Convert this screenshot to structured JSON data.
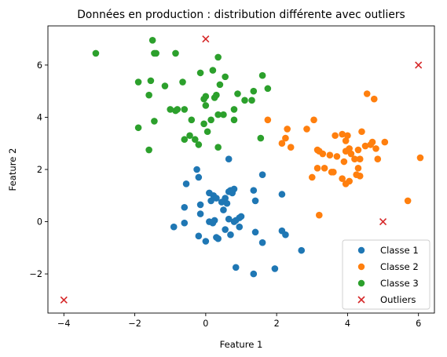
{
  "chart_data": {
    "type": "scatter",
    "title": "Données en production : distribution différente avec outliers",
    "xlabel": "Feature 1",
    "ylabel": "Feature 2",
    "xlim": [
      -4.45,
      6.45
    ],
    "ylim": [
      -3.5,
      7.5
    ],
    "xticks": [
      -4,
      -2,
      0,
      2,
      4,
      6
    ],
    "yticks": [
      -2,
      0,
      2,
      4,
      6
    ],
    "grid": false,
    "legend_position": "bottom-right",
    "series": [
      {
        "name": "Classe 1",
        "marker": "circle",
        "color": "#1f77b4",
        "points": [
          [
            -0.25,
            2.0
          ],
          [
            0.1,
            1.1
          ],
          [
            0.22,
            1.0
          ],
          [
            0.55,
            0.9
          ],
          [
            0.65,
            1.15
          ],
          [
            0.7,
            1.2
          ],
          [
            0.75,
            1.1
          ],
          [
            0.8,
            1.25
          ],
          [
            0.15,
            0.8
          ],
          [
            0.3,
            0.9
          ],
          [
            0.45,
            0.75
          ],
          [
            0.6,
            0.7
          ],
          [
            -0.55,
            1.45
          ],
          [
            -0.2,
            1.7
          ],
          [
            0.65,
            2.4
          ],
          [
            1.35,
            1.2
          ],
          [
            1.6,
            1.8
          ],
          [
            1.4,
            0.8
          ],
          [
            2.15,
            1.05
          ],
          [
            -0.15,
            0.65
          ],
          [
            -0.15,
            0.3
          ],
          [
            -0.6,
            0.55
          ],
          [
            0.1,
            0.0
          ],
          [
            0.25,
            0.05
          ],
          [
            0.5,
            0.45
          ],
          [
            0.65,
            0.1
          ],
          [
            0.95,
            0.15
          ],
          [
            0.8,
            0.0
          ],
          [
            0.85,
            0.05
          ],
          [
            -0.9,
            -0.2
          ],
          [
            -0.6,
            -0.05
          ],
          [
            -0.2,
            -0.55
          ],
          [
            0.0,
            -0.75
          ],
          [
            0.3,
            -0.6
          ],
          [
            0.35,
            -0.65
          ],
          [
            0.55,
            -0.3
          ],
          [
            0.7,
            -0.5
          ],
          [
            0.95,
            -0.2
          ],
          [
            1.0,
            0.2
          ],
          [
            1.4,
            -0.4
          ],
          [
            1.6,
            -0.8
          ],
          [
            2.15,
            -0.35
          ],
          [
            2.25,
            -0.5
          ],
          [
            2.7,
            -1.1
          ],
          [
            0.85,
            -1.75
          ],
          [
            1.35,
            -2.0
          ],
          [
            1.95,
            -1.8
          ],
          [
            0.2,
            -0.05
          ]
        ]
      },
      {
        "name": "Classe 2",
        "marker": "circle",
        "color": "#ff7f0e",
        "points": [
          [
            1.75,
            3.9
          ],
          [
            2.3,
            3.55
          ],
          [
            2.25,
            3.2
          ],
          [
            2.4,
            2.85
          ],
          [
            2.15,
            3.0
          ],
          [
            2.85,
            3.55
          ],
          [
            3.05,
            3.9
          ],
          [
            3.0,
            1.7
          ],
          [
            3.15,
            2.75
          ],
          [
            3.2,
            2.7
          ],
          [
            3.3,
            2.6
          ],
          [
            3.5,
            2.55
          ],
          [
            3.15,
            2.05
          ],
          [
            3.35,
            2.05
          ],
          [
            3.55,
            1.9
          ],
          [
            3.65,
            3.3
          ],
          [
            3.85,
            3.35
          ],
          [
            3.95,
            3.1
          ],
          [
            3.7,
            2.5
          ],
          [
            3.9,
            2.3
          ],
          [
            3.85,
            1.65
          ],
          [
            3.95,
            1.45
          ],
          [
            3.6,
            1.9
          ],
          [
            3.95,
            2.7
          ],
          [
            4.05,
            2.8
          ],
          [
            4.1,
            2.6
          ],
          [
            4.0,
            3.3
          ],
          [
            4.05,
            1.55
          ],
          [
            4.25,
            1.8
          ],
          [
            4.3,
            2.05
          ],
          [
            4.35,
            2.4
          ],
          [
            4.3,
            2.75
          ],
          [
            4.4,
            3.45
          ],
          [
            4.5,
            2.9
          ],
          [
            4.65,
            2.95
          ],
          [
            4.7,
            3.05
          ],
          [
            4.8,
            2.8
          ],
          [
            4.85,
            2.4
          ],
          [
            5.05,
            3.05
          ],
          [
            4.75,
            4.7
          ],
          [
            4.55,
            4.9
          ],
          [
            4.35,
            1.75
          ],
          [
            3.2,
            0.25
          ],
          [
            5.7,
            0.8
          ],
          [
            6.05,
            2.45
          ],
          [
            4.2,
            2.4
          ]
        ]
      },
      {
        "name": "Classe 3",
        "marker": "circle",
        "color": "#2ca02c",
        "points": [
          [
            -3.1,
            6.45
          ],
          [
            -1.5,
            6.95
          ],
          [
            -1.4,
            6.45
          ],
          [
            -0.85,
            6.45
          ],
          [
            0.35,
            6.3
          ],
          [
            0.2,
            5.8
          ],
          [
            -0.15,
            5.7
          ],
          [
            0.4,
            5.25
          ],
          [
            0.55,
            5.55
          ],
          [
            -1.9,
            5.35
          ],
          [
            -1.55,
            5.4
          ],
          [
            -1.15,
            5.2
          ],
          [
            -0.65,
            5.35
          ],
          [
            -1.6,
            4.85
          ],
          [
            0.25,
            4.75
          ],
          [
            0.3,
            4.85
          ],
          [
            0.0,
            4.8
          ],
          [
            -0.05,
            4.7
          ],
          [
            0.0,
            4.45
          ],
          [
            0.9,
            4.9
          ],
          [
            1.35,
            5.0
          ],
          [
            1.6,
            5.6
          ],
          [
            1.75,
            5.1
          ],
          [
            1.1,
            4.65
          ],
          [
            1.3,
            4.65
          ],
          [
            -1.0,
            4.3
          ],
          [
            -0.8,
            4.3
          ],
          [
            -0.85,
            4.25
          ],
          [
            -0.6,
            4.3
          ],
          [
            -0.4,
            3.9
          ],
          [
            0.15,
            3.9
          ],
          [
            0.35,
            4.1
          ],
          [
            0.5,
            4.1
          ],
          [
            0.8,
            4.3
          ],
          [
            0.8,
            3.9
          ],
          [
            -1.9,
            3.6
          ],
          [
            -1.45,
            3.85
          ],
          [
            -0.05,
            3.75
          ],
          [
            0.05,
            3.45
          ],
          [
            -0.6,
            3.15
          ],
          [
            -0.45,
            3.3
          ],
          [
            -0.3,
            3.15
          ],
          [
            -0.2,
            2.95
          ],
          [
            0.35,
            2.85
          ],
          [
            -1.6,
            2.75
          ],
          [
            1.55,
            3.2
          ],
          [
            -1.45,
            6.45
          ]
        ]
      },
      {
        "name": "Outliers",
        "marker": "x",
        "color": "#d62728",
        "points": [
          [
            0.0,
            7.0
          ],
          [
            6.0,
            6.0
          ],
          [
            5.0,
            0.0
          ],
          [
            -4.0,
            -3.0
          ]
        ]
      }
    ]
  }
}
